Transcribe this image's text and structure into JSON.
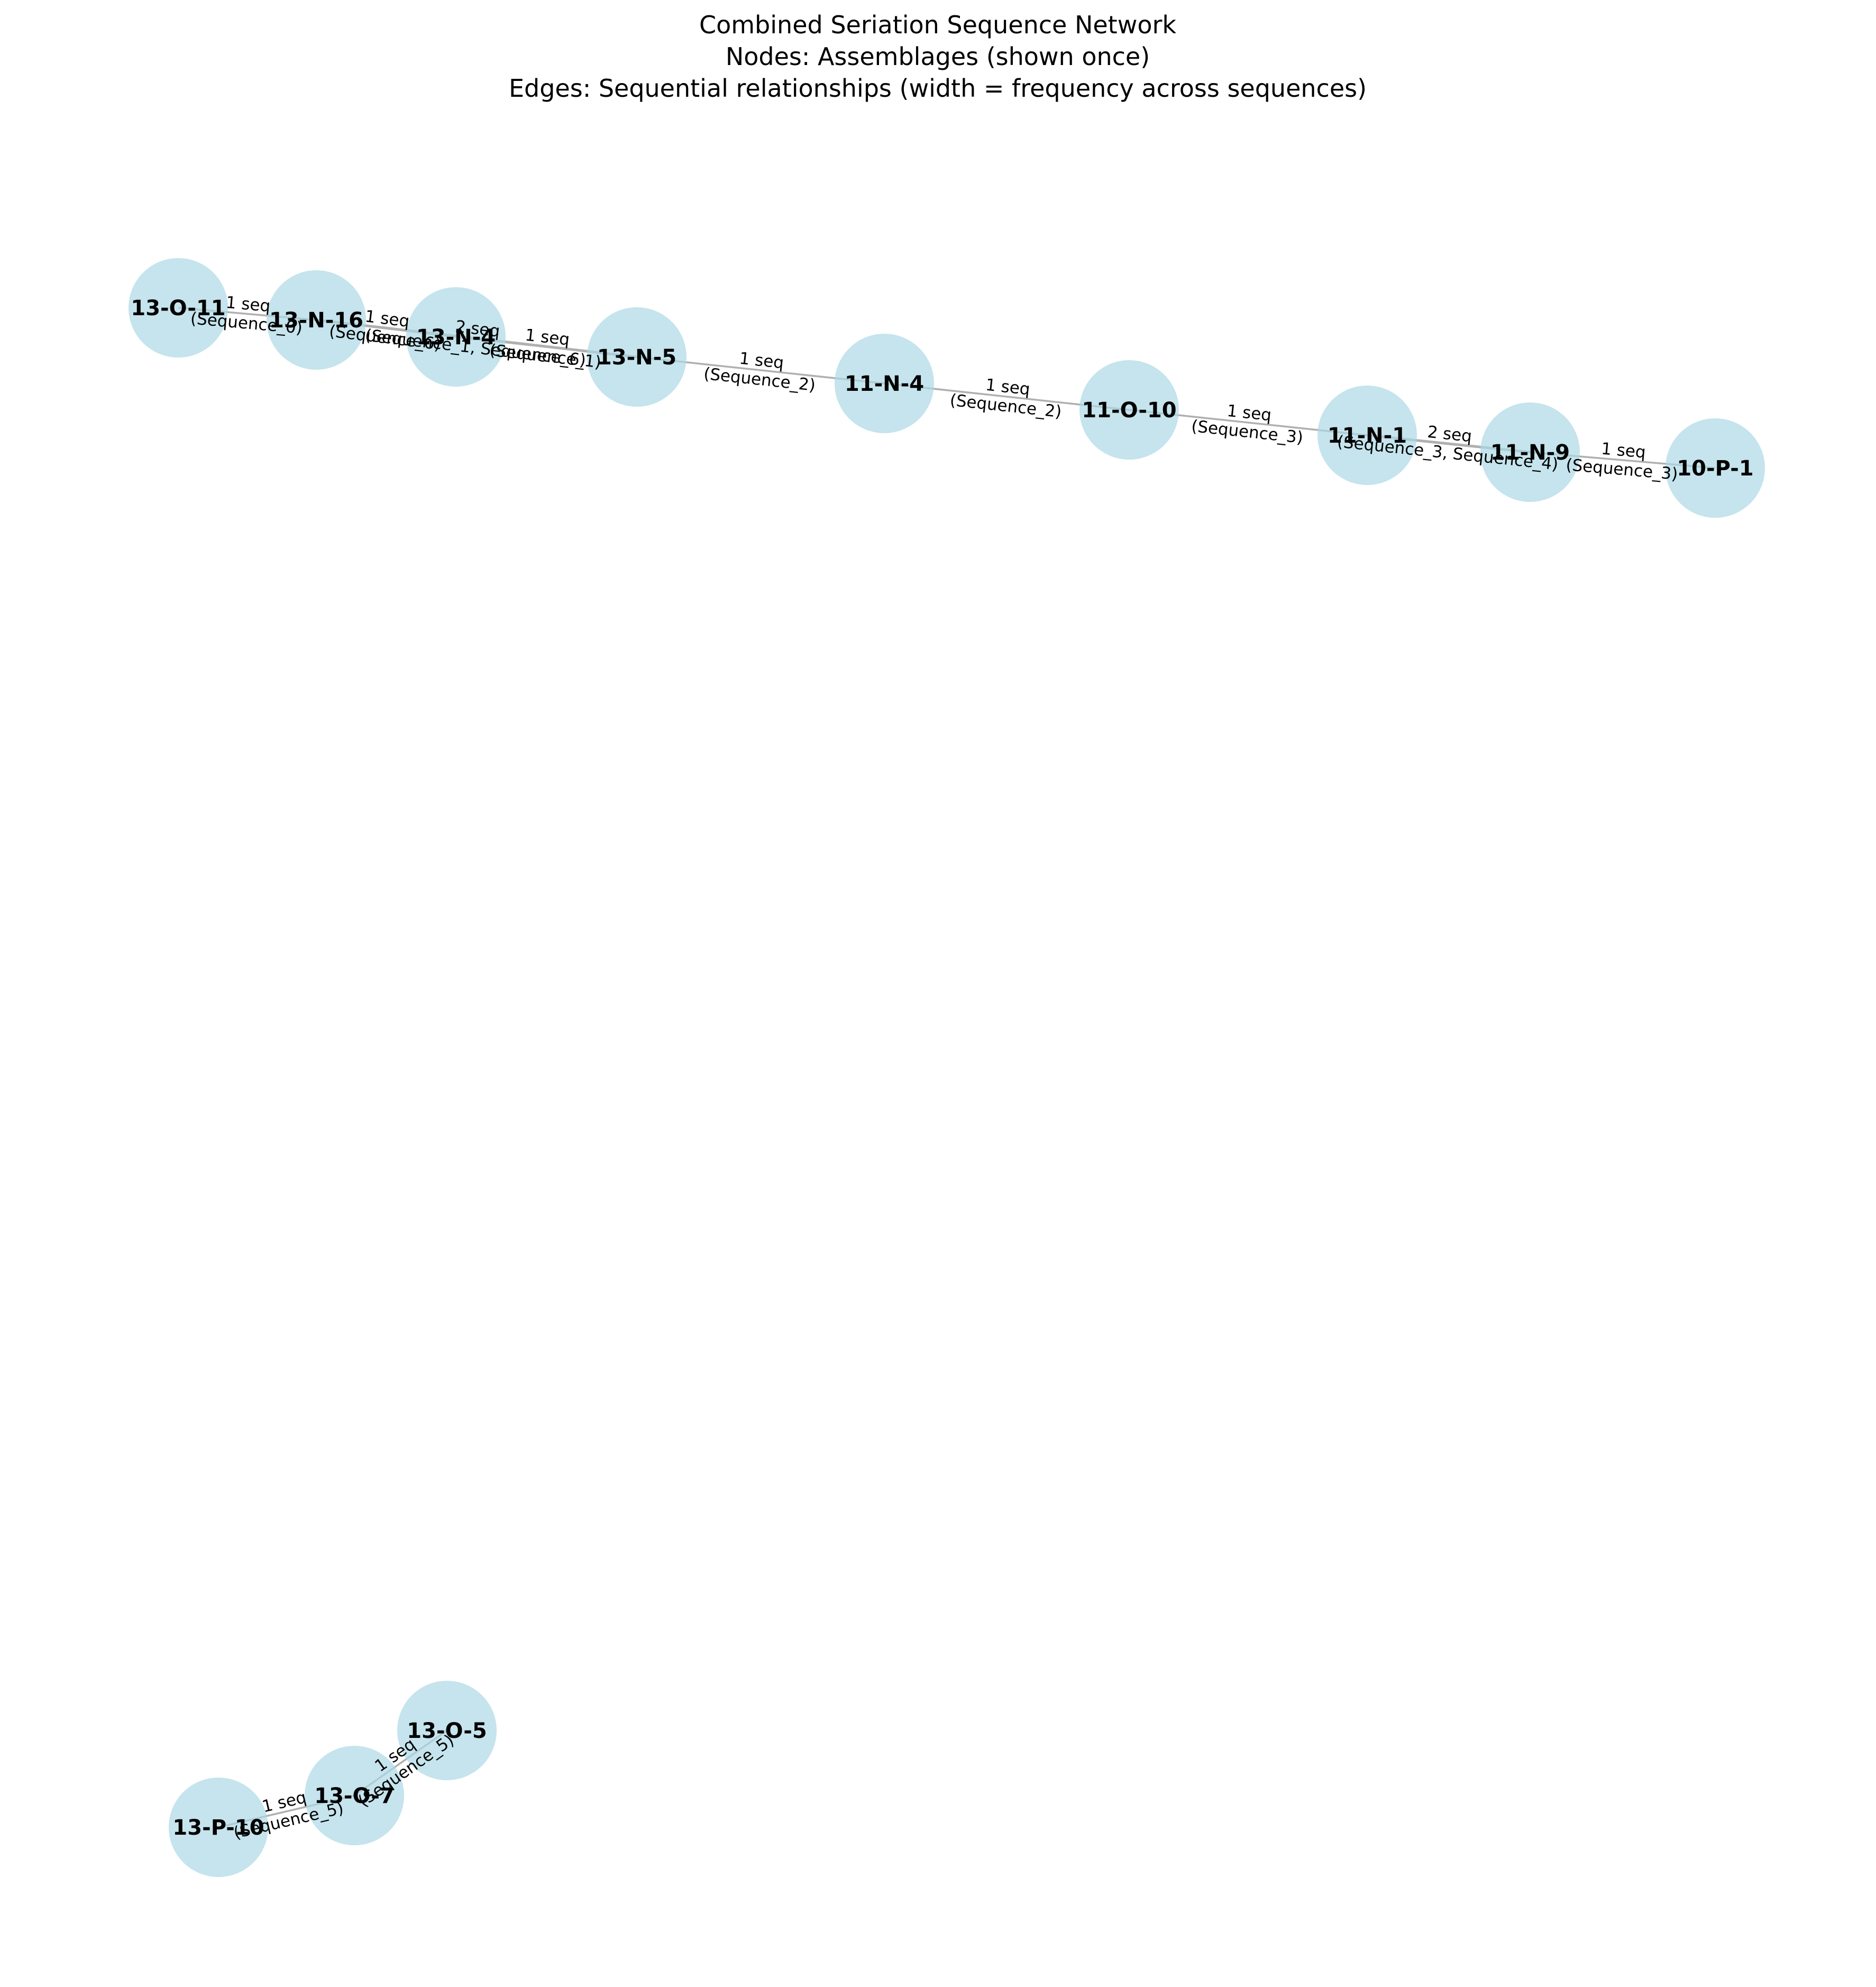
{
  "title": {
    "line1": "Combined Seriation Sequence Network",
    "line2": "Nodes: Assemblages (shown once)",
    "line3": "Edges: Sequential relationships (width = frequency across sequences)"
  },
  "colors": {
    "background": "#ffffff",
    "node_fill": "#add8e6",
    "edge": "#b0b0b0",
    "text": "#000000"
  },
  "nodes": [
    {
      "id": "13-O-11",
      "label": "13-O-11"
    },
    {
      "id": "13-N-16",
      "label": "13-N-16"
    },
    {
      "id": "13-N-4",
      "label": "13-N-4"
    },
    {
      "id": "13-N-5",
      "label": "13-N-5"
    },
    {
      "id": "11-N-4",
      "label": "11-N-4"
    },
    {
      "id": "11-O-10",
      "label": "11-O-10"
    },
    {
      "id": "11-N-1",
      "label": "11-N-1"
    },
    {
      "id": "11-N-9",
      "label": "11-N-9"
    },
    {
      "id": "10-P-1",
      "label": "10-P-1"
    },
    {
      "id": "13-O-5",
      "label": "13-O-5"
    },
    {
      "id": "13-O-7",
      "label": "13-O-7"
    },
    {
      "id": "13-P-10",
      "label": "13-P-10"
    }
  ],
  "edges": [
    {
      "source": "13-O-11",
      "target": "13-N-16",
      "count_label": "1 seq",
      "seq_label": "(Sequence_0)"
    },
    {
      "source": "13-N-16",
      "target": "13-N-4",
      "count_label": "1 seq",
      "seq_label": "(Sequence_6)"
    },
    {
      "source": "13-N-16",
      "target": "13-N-5",
      "count_label": "2 seq",
      "seq_label": "(Sequence_1, Sequence_6)"
    },
    {
      "source": "13-N-4",
      "target": "13-N-5",
      "count_label": "1 seq",
      "seq_label": "(Sequence_1)"
    },
    {
      "source": "13-N-5",
      "target": "11-N-4",
      "count_label": "1 seq",
      "seq_label": "(Sequence_2)"
    },
    {
      "source": "11-N-4",
      "target": "11-O-10",
      "count_label": "1 seq",
      "seq_label": "(Sequence_2)"
    },
    {
      "source": "11-O-10",
      "target": "11-N-1",
      "count_label": "1 seq",
      "seq_label": "(Sequence_3)"
    },
    {
      "source": "11-N-1",
      "target": "11-N-9",
      "count_label": "2 seq",
      "seq_label": "(Sequence_3, Sequence_4)"
    },
    {
      "source": "11-N-9",
      "target": "10-P-1",
      "count_label": "1 seq",
      "seq_label": "(Sequence_3)"
    },
    {
      "source": "13-O-5",
      "target": "13-O-7",
      "count_label": "1 seq",
      "seq_label": "(Sequence_5)"
    },
    {
      "source": "13-O-7",
      "target": "13-P-10",
      "count_label": "1 seq",
      "seq_label": "(Sequence_5)"
    }
  ]
}
